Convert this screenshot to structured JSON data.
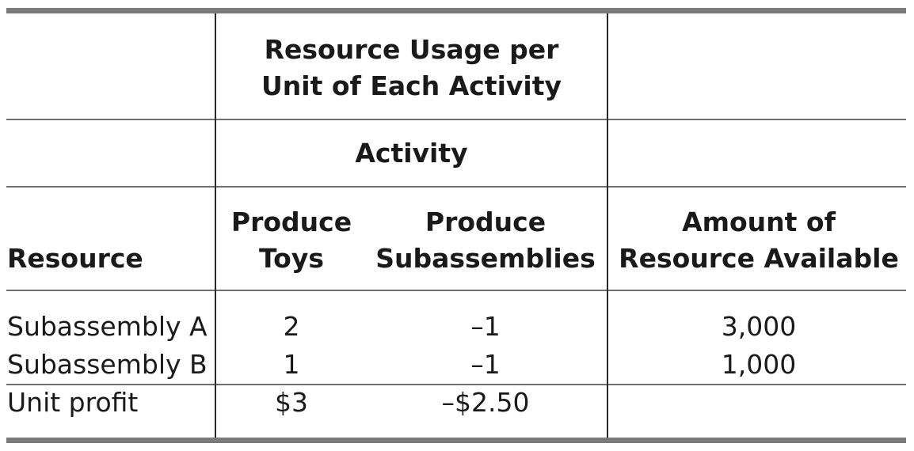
{
  "table": {
    "header_group": {
      "line1": "Resource Usage per",
      "line2": "Unit of Each Activity"
    },
    "activity_label": "Activity",
    "columns": {
      "resource": "Resource",
      "toys": {
        "line1": "Produce",
        "line2": "Toys"
      },
      "subassemblies": {
        "line1": "Produce",
        "line2": "Subassemblies"
      },
      "available": {
        "line1": "Amount of",
        "line2": "Resource Available"
      }
    },
    "rows": [
      {
        "resource": "Subassembly A",
        "toys": "2",
        "subassemblies": "–1",
        "available": "3,000"
      },
      {
        "resource": "Subassembly B",
        "toys": "1",
        "subassemblies": "–1",
        "available": "1,000"
      }
    ],
    "profit_row": {
      "resource": "Unit profit",
      "toys": "$3",
      "subassemblies": "–$2.50",
      "available": ""
    }
  }
}
